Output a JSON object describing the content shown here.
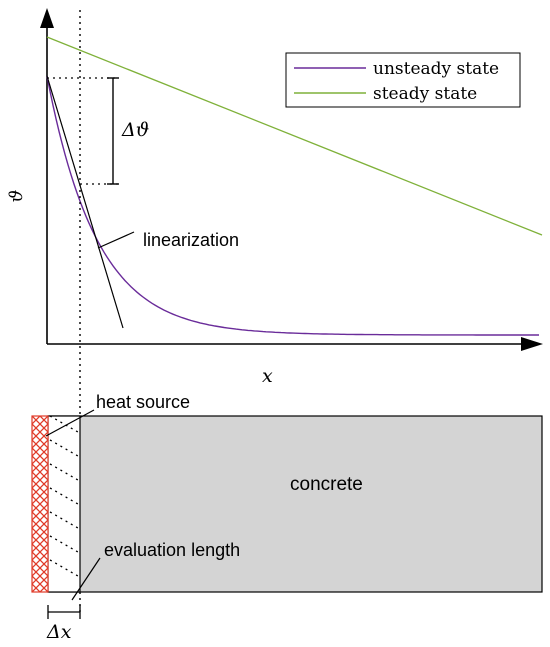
{
  "plot": {
    "y_axis_label": "ϑ",
    "x_axis_label": "x",
    "delta_theta_label": "Δϑ",
    "linearization_label": "linearization",
    "legend": [
      {
        "label": "unsteady state",
        "color": "#6a2c9a"
      },
      {
        "label": "steady state",
        "color": "#7fb13a"
      }
    ]
  },
  "specimen": {
    "heat_source_label": "heat source",
    "concrete_label": "concrete",
    "evaluation_length_label": "evaluation length",
    "delta_x_label": "Δx",
    "heat_source_color": "#e03a28",
    "concrete_color": "#d4d4d4"
  }
}
